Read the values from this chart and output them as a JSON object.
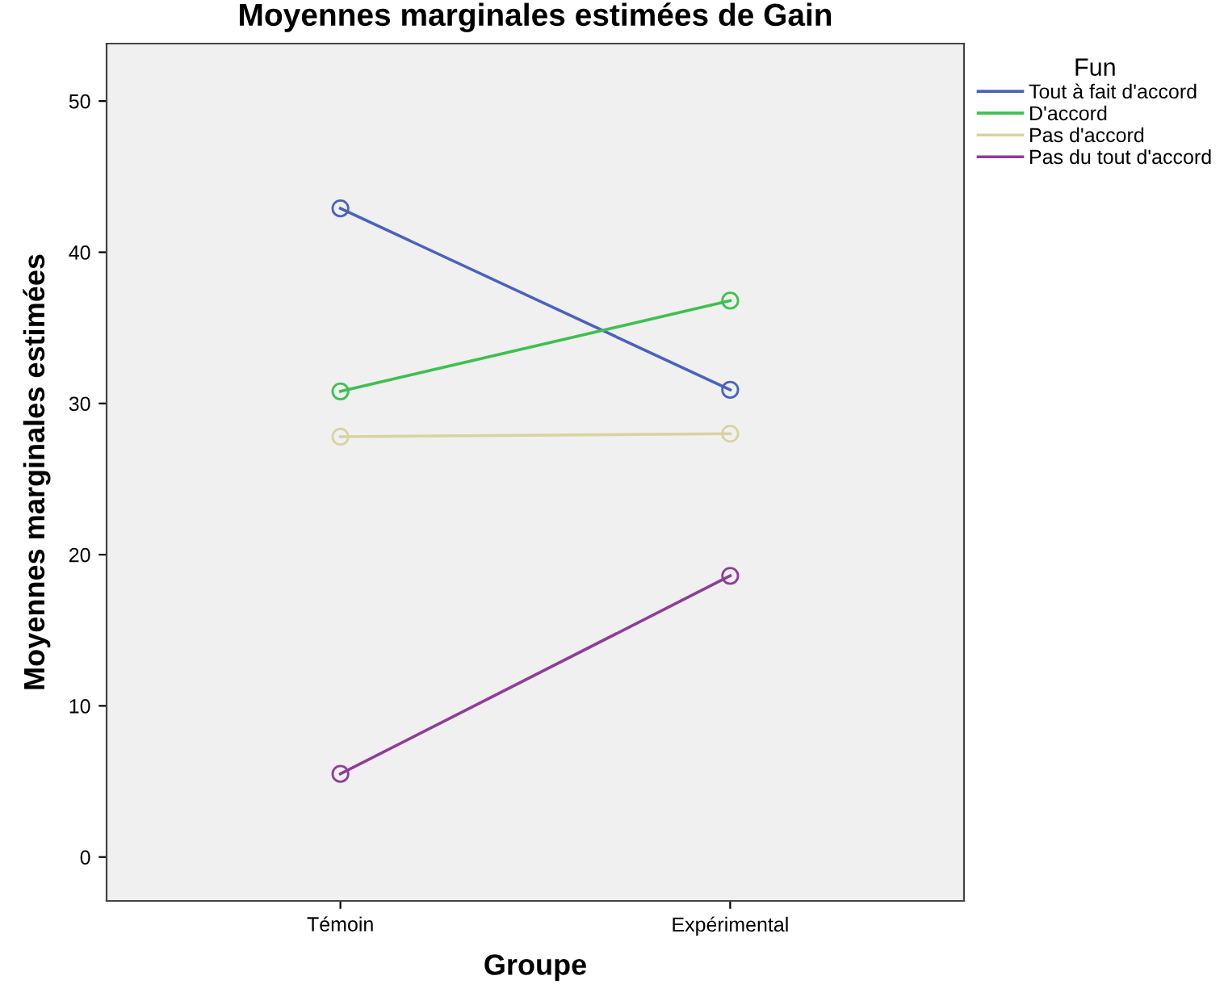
{
  "chart_data": {
    "type": "line",
    "title": "Moyennes marginales estimées de Gain",
    "xlabel": "Groupe",
    "ylabel": "Moyennes marginales estimées",
    "legend_title": "Fun",
    "categories": [
      "Témoin",
      "Expérimental"
    ],
    "series": [
      {
        "name": "Tout à fait d'accord",
        "color": "#4a62be",
        "values": [
          42.9,
          30.9
        ]
      },
      {
        "name": "D'accord",
        "color": "#3ec04f",
        "values": [
          30.8,
          36.8
        ]
      },
      {
        "name": "Pas d'accord",
        "color": "#d8d3a0",
        "values": [
          27.8,
          28.0
        ]
      },
      {
        "name": "Pas du tout d'accord",
        "color": "#8e3d98",
        "values": [
          5.5,
          18.6
        ]
      }
    ],
    "ylim": [
      -2.9,
      53.8
    ],
    "yticks": [
      0,
      10,
      20,
      30,
      40,
      50
    ],
    "grid": false,
    "legend": "top right",
    "marker": "circle",
    "line_style": "solid"
  }
}
